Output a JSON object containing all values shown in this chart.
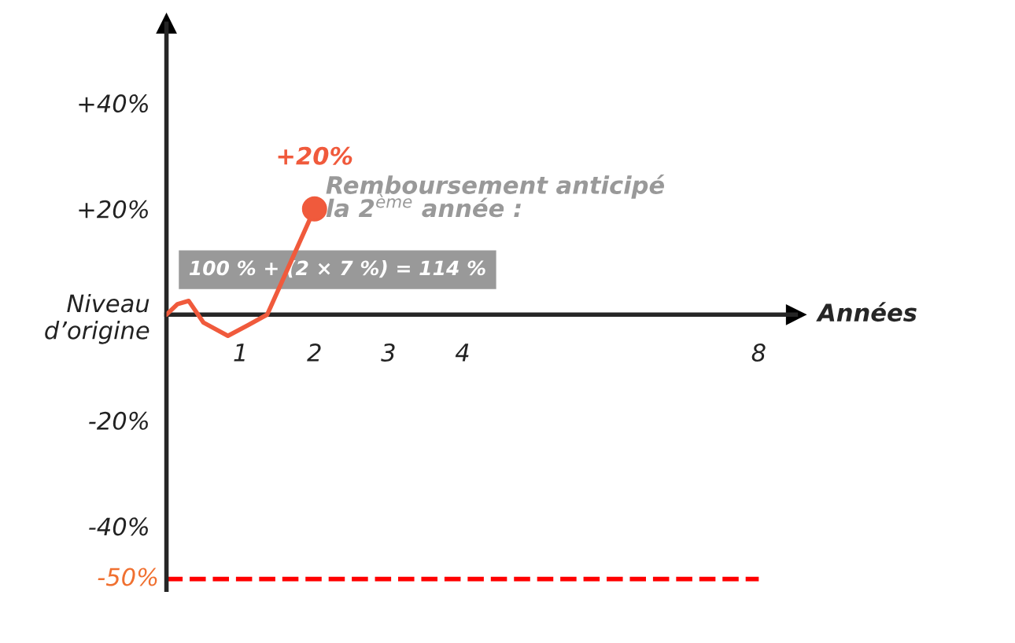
{
  "chart_data": {
    "type": "line",
    "xlabel": "Années",
    "xlim": [
      0,
      8.5
    ],
    "xticks": [
      1,
      2,
      3,
      4,
      8
    ],
    "ylim": [
      -52,
      55
    ],
    "yticks": [
      {
        "value": -40,
        "label": "-40%"
      },
      {
        "value": -20,
        "label": "-20%"
      },
      {
        "value": 0,
        "label": "Niveau\nd’origine"
      },
      {
        "value": 20,
        "label": "+20%"
      },
      {
        "value": 40,
        "label": "+40%"
      }
    ],
    "series": [
      {
        "color": "#f05a3c",
        "x": [
          0,
          0.15,
          0.3,
          0.5,
          0.83,
          1.1,
          1.36,
          1.68,
          2
        ],
        "values": [
          0,
          2,
          2.6,
          -1.5,
          -4,
          -2,
          0,
          10,
          20
        ]
      },
      {
        "type": "scatter",
        "color": "#f05a3c",
        "x": [
          2
        ],
        "values": [
          20
        ]
      }
    ],
    "ref_lines": [
      {
        "axis": "y",
        "value": -50,
        "label": "-50%",
        "color": "#ff0000",
        "line_style": "dashed"
      }
    ],
    "annotations": [
      {
        "text": "+20%",
        "x": 2,
        "y": 20
      },
      "Remboursement anticipé\nla 2$^{ème}$ année :",
      "100 % + (2 × 7 %) = 114 %"
    ],
    "grid": false,
    "legend": false
  }
}
